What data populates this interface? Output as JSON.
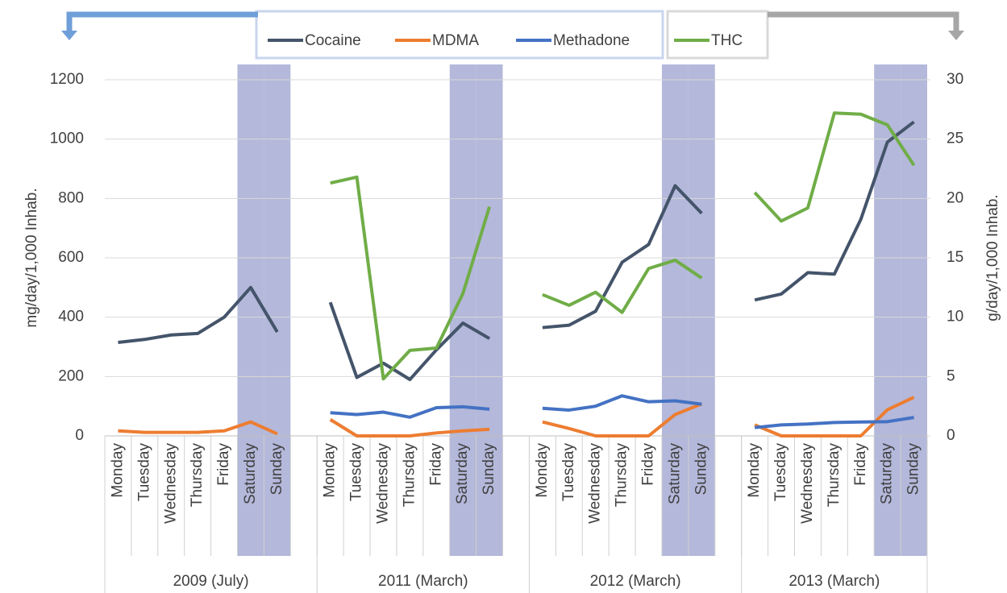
{
  "chart_data": {
    "type": "line",
    "y_label": "mg/day/1,000 Inhab.",
    "y2_label": "g/day/1,000 Inhab.",
    "categories": [
      "Monday",
      "Tuesday",
      "Wednesday",
      "Thursday",
      "Friday",
      "Saturday",
      "Sunday",
      null,
      "Monday",
      "Tuesday",
      "Wednesday",
      "Thursday",
      "Friday",
      "Saturday",
      "Sunday",
      null,
      "Monday",
      "Tuesday",
      "Wednesday",
      "Thursday",
      "Friday",
      "Saturday",
      "Sunday",
      null,
      "Monday",
      "Tuesday",
      "Wednesday",
      "Thursday",
      "Friday",
      "Saturday",
      "Sunday"
    ],
    "groups": [
      "2009 (July)",
      "2011 (March)",
      "2012 (March)",
      "2013 (March)"
    ],
    "highlight": [
      5,
      6,
      13,
      14,
      21,
      22,
      29,
      30
    ],
    "highlight_color": "#b4b8da",
    "series": [
      {
        "name": "Cocaine",
        "color": "#44546a",
        "values": [
          315,
          325,
          340,
          345,
          400,
          500,
          350,
          null,
          450,
          197,
          245,
          190,
          290,
          380,
          328,
          null,
          365,
          373,
          420,
          585,
          645,
          843,
          750,
          null,
          458,
          478,
          550,
          545,
          730,
          990,
          1058
        ]
      },
      {
        "name": "MDMA",
        "color": "#ed7d31",
        "values": [
          17,
          12,
          12,
          12,
          17,
          47,
          7,
          null,
          55,
          0,
          0,
          0,
          10,
          17,
          22,
          null,
          47,
          25,
          0,
          0,
          0,
          72,
          108,
          null,
          37,
          0,
          0,
          0,
          0,
          88,
          130
        ]
      },
      {
        "name": "Methadone",
        "color": "#4472c4",
        "values": [
          null,
          null,
          null,
          null,
          null,
          null,
          null,
          null,
          78,
          72,
          80,
          63,
          95,
          98,
          90,
          null,
          93,
          87,
          100,
          135,
          115,
          118,
          107,
          null,
          28,
          37,
          40,
          45,
          47,
          48,
          62
        ]
      },
      {
        "name": "THC",
        "color": "#70ad47",
        "axis": "y2",
        "values": [
          null,
          null,
          null,
          null,
          null,
          null,
          null,
          null,
          21.3,
          21.8,
          4.8,
          7.2,
          7.4,
          12,
          19.3,
          null,
          11.9,
          11.0,
          12.1,
          10.4,
          14.1,
          14.8,
          13.3,
          null,
          20.5,
          18.1,
          19.2,
          27.2,
          27.1,
          26.2,
          22.8
        ]
      }
    ],
    "ylim": [
      0,
      1200
    ],
    "yticks": [
      0,
      200,
      400,
      600,
      800,
      1000,
      1200
    ],
    "y2lim": [
      0,
      30
    ],
    "y2ticks": [
      0,
      5,
      10,
      15,
      20,
      25,
      30
    ],
    "grid": true
  }
}
